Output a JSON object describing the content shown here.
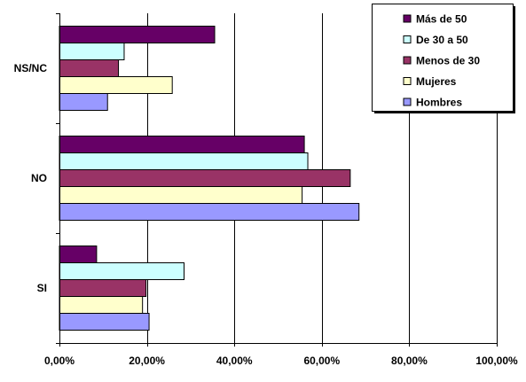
{
  "chart_data": {
    "type": "bar",
    "orientation": "horizontal",
    "categories": [
      "SI",
      "NO",
      "NS/NC"
    ],
    "x_ticks": [
      "0,00%",
      "20,00%",
      "40,00%",
      "60,00%",
      "80,00%",
      "100,00%"
    ],
    "xlim": [
      0,
      100
    ],
    "grid": true,
    "legend_position": "top-right",
    "series": [
      {
        "name": "Hombres",
        "color": "#9999FF",
        "values": [
          20.5,
          68.5,
          11
        ]
      },
      {
        "name": "Mujeres",
        "color": "#FFFFCC",
        "values": [
          19,
          55.5,
          25.8
        ]
      },
      {
        "name": "Menos de 30",
        "color": "#993366",
        "values": [
          19.8,
          66.5,
          13.5
        ]
      },
      {
        "name": "De 30 a 50",
        "color": "#CCFFFF",
        "values": [
          28.5,
          56.8,
          14.8
        ]
      },
      {
        "name": "Más de 50",
        "color": "#660066",
        "values": [
          8.5,
          56,
          35.5
        ]
      }
    ]
  }
}
